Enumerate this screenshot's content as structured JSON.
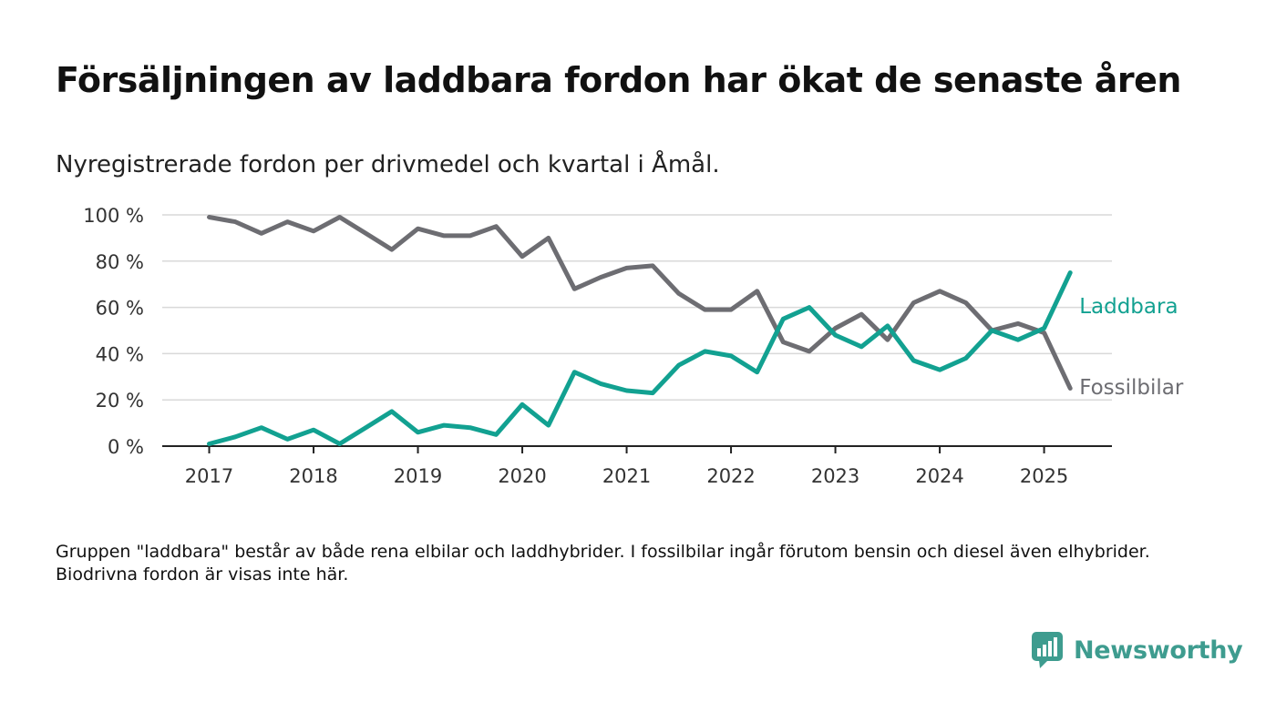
{
  "title": "Försäljningen av laddbara fordon har ökat de senaste åren",
  "subtitle": "Nyregistrerade fordon per drivmedel och kvartal i Åmål.",
  "note": "Gruppen \"laddbara\" består av både rena elbilar och laddhybrider. I fossilbilar ingår förutom bensin och diesel även elhybrider. Biodrivna fordon är visas inte här.",
  "brand": {
    "name": "Newsworthy",
    "icon": "newsworthy-logo-icon",
    "color": "#3e9c8f"
  },
  "chart_data": {
    "type": "line",
    "x_start": 2017.0,
    "x_step": 0.25,
    "xlim": [
      2016.55,
      2025.65
    ],
    "ylim": [
      0,
      100
    ],
    "x_ticks": [
      2017,
      2018,
      2019,
      2020,
      2021,
      2022,
      2023,
      2024,
      2025
    ],
    "x_tick_labels": [
      "2017",
      "2018",
      "2019",
      "2020",
      "2021",
      "2022",
      "2023",
      "2024",
      "2025"
    ],
    "y_ticks": [
      0,
      20,
      40,
      60,
      80,
      100
    ],
    "y_tick_labels": [
      "0 %",
      "20 %",
      "40 %",
      "60 %",
      "80 %",
      "100 %"
    ],
    "grid": "horizontal",
    "legend": "direct labels at line ends",
    "series": [
      {
        "name": "Laddbara",
        "color": "#12a191",
        "values": [
          1,
          4,
          8,
          3,
          7,
          1,
          8,
          15,
          6,
          9,
          8,
          5,
          18,
          9,
          32,
          27,
          24,
          23,
          35,
          41,
          39,
          32,
          55,
          60,
          48,
          43,
          52,
          37,
          33,
          38,
          50,
          46,
          51,
          75
        ]
      },
      {
        "name": "Fossilbilar",
        "color": "#6d6d72",
        "values": [
          99,
          97,
          92,
          97,
          93,
          99,
          92,
          85,
          94,
          91,
          91,
          95,
          82,
          90,
          68,
          73,
          77,
          78,
          66,
          59,
          59,
          67,
          45,
          41,
          51,
          57,
          46,
          62,
          67,
          62,
          50,
          53,
          49,
          25
        ]
      }
    ]
  }
}
